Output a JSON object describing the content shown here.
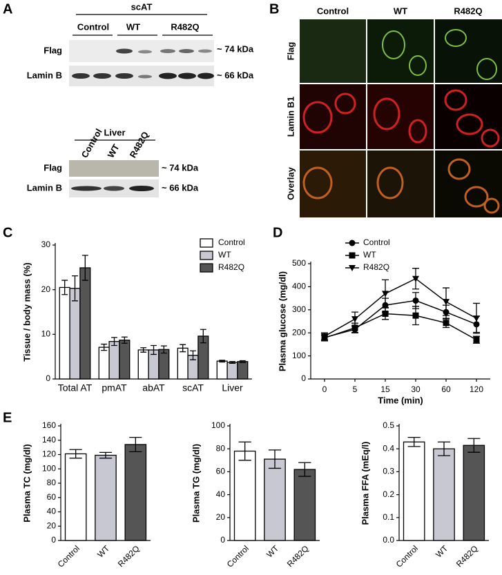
{
  "panels": {
    "A": {
      "letter": "A",
      "top": {
        "group": "scAT",
        "lanes": [
          "Control",
          "WT",
          "R482Q"
        ],
        "rows": [
          "Flag",
          "Lamin B"
        ],
        "sizes": [
          "~ 74 kDa",
          "~ 66 kDa"
        ]
      },
      "bottom": {
        "group": "Liver",
        "lanes": [
          "Control",
          "WT",
          "R482Q"
        ],
        "rows": [
          "Flag",
          "Lamin B"
        ],
        "sizes": [
          "~ 74 kDa",
          "~ 66 kDa"
        ]
      }
    },
    "B": {
      "letter": "B",
      "columns": [
        "Control",
        "WT",
        "R482Q"
      ],
      "rows": [
        "Flag",
        "Lamin B1",
        "Overlay"
      ]
    },
    "C": {
      "letter": "C"
    },
    "D": {
      "letter": "D"
    },
    "E": {
      "letter": "E"
    }
  },
  "chart_data": [
    {
      "type": "bar",
      "ylabel": "Tissue / body mass (%)",
      "categories": [
        "Total AT",
        "pmAT",
        "abAT",
        "scAT",
        "Liver"
      ],
      "series": [
        {
          "name": "Control",
          "color": "#ffffff",
          "values": [
            20.5,
            7.1,
            6.5,
            6.9,
            4.0
          ],
          "errors": [
            1.6,
            0.7,
            0.5,
            0.8,
            0.2
          ]
        },
        {
          "name": "WT",
          "color": "#c8c8d2",
          "values": [
            20.3,
            8.4,
            6.5,
            5.3,
            3.7
          ],
          "errors": [
            2.8,
            0.9,
            1.0,
            1.0,
            0.2
          ]
        },
        {
          "name": "R482Q",
          "color": "#555555",
          "values": [
            24.9,
            8.7,
            6.6,
            9.6,
            3.9
          ],
          "errors": [
            2.8,
            0.7,
            0.8,
            1.5,
            0.2
          ]
        }
      ],
      "ylim": [
        0,
        30
      ],
      "yticks": [
        0,
        10,
        20,
        30
      ],
      "legend": "top-right"
    },
    {
      "type": "line",
      "xlabel": "Time (min)",
      "ylabel": "Plasma glucose (mg/dl)",
      "categories": [
        "0",
        "5",
        "15",
        "30",
        "60",
        "120"
      ],
      "series": [
        {
          "name": "Control",
          "color": "#000000",
          "marker": "circle",
          "values": [
            180,
            215,
            320,
            340,
            290,
            237
          ],
          "errors": [
            15,
            15,
            30,
            35,
            30,
            35
          ]
        },
        {
          "name": "WT",
          "color": "#000000",
          "marker": "square",
          "values": [
            178,
            222,
            283,
            275,
            243,
            170
          ],
          "errors": [
            12,
            20,
            25,
            40,
            20,
            15
          ]
        },
        {
          "name": "R482Q",
          "color": "#000000",
          "marker": "triangle-down",
          "values": [
            185,
            260,
            370,
            435,
            335,
            263
          ],
          "errors": [
            15,
            30,
            60,
            45,
            60,
            65
          ]
        }
      ],
      "ylim": [
        0,
        500
      ],
      "yticks": [
        0,
        100,
        200,
        300,
        400,
        500
      ],
      "legend": "top-right"
    },
    {
      "type": "bar",
      "ylabel": "Plasma TC (mg/dl)",
      "categories": [
        "Control",
        "WT",
        "R482Q"
      ],
      "values": [
        121,
        119,
        134
      ],
      "errors": [
        6,
        4,
        10
      ],
      "colors": [
        "#ffffff",
        "#c8c8d2",
        "#555555"
      ],
      "ylim": [
        0,
        160
      ],
      "yticks": [
        0,
        20,
        40,
        60,
        80,
        100,
        120,
        140,
        160
      ]
    },
    {
      "type": "bar",
      "ylabel": "Plasma TG (mg/dl)",
      "categories": [
        "Control",
        "WT",
        "R482Q"
      ],
      "values": [
        78,
        71,
        62
      ],
      "errors": [
        8,
        8,
        6
      ],
      "colors": [
        "#ffffff",
        "#c8c8d2",
        "#555555"
      ],
      "ylim": [
        0,
        100
      ],
      "yticks": [
        0,
        20,
        40,
        60,
        80,
        100
      ]
    },
    {
      "type": "bar",
      "ylabel": "Plasma FFA (mEq/l)",
      "categories": [
        "Control",
        "WT",
        "R482Q"
      ],
      "values": [
        0.43,
        0.4,
        0.415
      ],
      "errors": [
        0.02,
        0.03,
        0.03
      ],
      "colors": [
        "#ffffff",
        "#c8c8d2",
        "#555555"
      ],
      "ylim": [
        0,
        0.5
      ],
      "yticks": [
        {
          "value": 0,
          "label": "0.0"
        },
        0.1,
        0.2,
        0.3,
        0.4,
        0.5
      ]
    }
  ]
}
